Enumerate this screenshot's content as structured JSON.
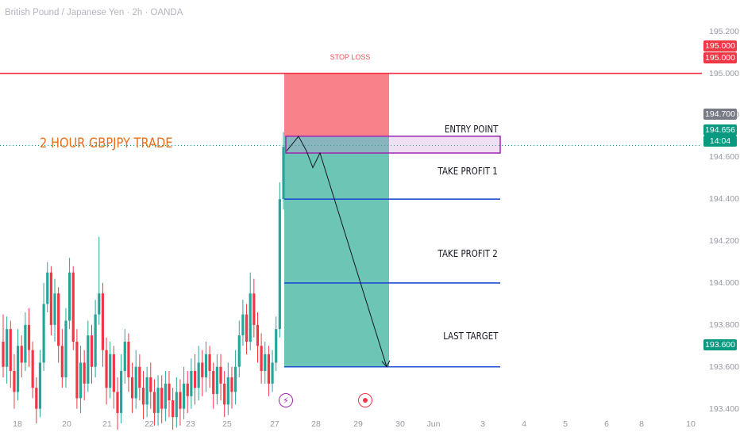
{
  "symbol_title": "British Pound / Japanese Yen · 2h · OANDA",
  "headline": "2 HOUR GBPJPY TRADE",
  "labels": {
    "stop_loss": "STOP LOSS",
    "entry": "ENTRY POINT",
    "tp1": "TAKE PROFIT 1",
    "tp2": "TAKE PROFIT 2",
    "last": "LAST TARGET"
  },
  "price_tags": {
    "stop_top": "195.000",
    "stop_bottom": "195.000",
    "entry_high": "194.700",
    "current": "194.656",
    "countdown": "14:04",
    "target": "193.600"
  },
  "colors": {
    "up": "#26a69a",
    "down": "#f23645",
    "stop_zone": "#f7828a",
    "profit_zone": "#6cc5b5",
    "stop_line": "#f23645",
    "target_line": "#1f4fd1",
    "entry_box": "#9c27b0"
  },
  "icons": {
    "event_1": "lightning-icon",
    "event_2": "dot-circle-icon"
  },
  "chart_data": {
    "type": "candlestick",
    "title": "British Pound / Japanese Yen · 2h · OANDA",
    "y_ticks": [
      "195.200",
      "195.000",
      "194.800",
      "194.600",
      "194.400",
      "194.200",
      "194.000",
      "193.800",
      "193.600",
      "193.400"
    ],
    "x_ticks": [
      "18",
      "20",
      "21",
      "22",
      "23",
      "25",
      "27",
      "28",
      "29",
      "30",
      "Jun",
      "3",
      "4",
      "5",
      "6",
      "8",
      "10"
    ],
    "ylim": [
      193.27,
      195.35
    ],
    "levels": {
      "stop_loss": 195.0,
      "entry_top": 194.7,
      "entry_bottom": 194.62,
      "take_profit_1": 194.4,
      "take_profit_2": 194.0,
      "last_target": 193.6,
      "current_price": 194.656
    },
    "projected_path": [
      194.63,
      194.7,
      194.63,
      194.55,
      194.62,
      193.6
    ],
    "candles": [
      [
        193.72,
        193.6,
        193.85,
        193.55
      ],
      [
        193.6,
        193.78,
        193.84,
        193.52
      ],
      [
        193.78,
        193.58,
        193.82,
        193.5
      ],
      [
        193.58,
        193.48,
        193.66,
        193.4
      ],
      [
        193.48,
        193.7,
        193.78,
        193.44
      ],
      [
        193.7,
        193.62,
        193.75,
        193.55
      ],
      [
        193.62,
        193.8,
        193.86,
        193.58
      ],
      [
        193.8,
        193.68,
        193.88,
        193.6
      ],
      [
        193.68,
        193.5,
        193.72,
        193.45
      ],
      [
        193.5,
        193.4,
        193.55,
        193.33
      ],
      [
        193.4,
        193.62,
        193.68,
        193.36
      ],
      [
        193.62,
        193.9,
        194.0,
        193.58
      ],
      [
        193.9,
        194.05,
        194.1,
        193.86
      ],
      [
        194.05,
        193.8,
        194.08,
        193.75
      ],
      [
        193.8,
        193.95,
        194.02,
        193.72
      ],
      [
        193.95,
        193.7,
        193.98,
        193.62
      ],
      [
        193.7,
        193.55,
        193.78,
        193.5
      ],
      [
        193.55,
        193.82,
        193.88,
        193.5
      ],
      [
        193.82,
        194.05,
        194.12,
        193.78
      ],
      [
        194.05,
        193.72,
        194.08,
        193.68
      ],
      [
        193.72,
        193.45,
        193.78,
        193.4
      ],
      [
        193.45,
        193.62,
        193.7,
        193.38
      ],
      [
        193.62,
        193.52,
        193.68,
        193.44
      ],
      [
        193.52,
        193.75,
        193.82,
        193.48
      ],
      [
        193.75,
        193.6,
        193.8,
        193.52
      ],
      [
        193.6,
        193.85,
        193.92,
        193.55
      ],
      [
        193.85,
        193.95,
        194.22,
        193.8
      ],
      [
        193.95,
        193.68,
        194.0,
        193.6
      ],
      [
        193.68,
        193.5,
        193.74,
        193.42
      ],
      [
        193.5,
        193.66,
        193.72,
        193.45
      ],
      [
        193.66,
        193.48,
        193.7,
        193.4
      ],
      [
        193.48,
        193.38,
        193.55,
        193.3
      ],
      [
        193.38,
        193.58,
        193.66,
        193.33
      ],
      [
        193.58,
        193.72,
        193.78,
        193.52
      ],
      [
        193.72,
        193.55,
        193.76,
        193.48
      ],
      [
        193.55,
        193.45,
        193.62,
        193.38
      ],
      [
        193.45,
        193.6,
        193.68,
        193.4
      ],
      [
        193.6,
        193.5,
        193.66,
        193.44
      ],
      [
        193.5,
        193.42,
        193.58,
        193.35
      ],
      [
        193.42,
        193.55,
        193.6,
        193.36
      ],
      [
        193.55,
        193.48,
        193.62,
        193.4
      ],
      [
        193.48,
        193.38,
        193.54,
        193.32
      ],
      [
        193.38,
        193.5,
        193.56,
        193.32
      ],
      [
        193.5,
        193.4,
        193.56,
        193.33
      ],
      [
        193.4,
        193.52,
        193.58,
        193.34
      ],
      [
        193.52,
        193.44,
        193.58,
        193.36
      ],
      [
        193.44,
        193.36,
        193.5,
        193.3
      ],
      [
        193.36,
        193.48,
        193.55,
        193.31
      ],
      [
        193.48,
        193.4,
        193.54,
        193.32
      ],
      [
        193.4,
        193.52,
        193.6,
        193.35
      ],
      [
        193.52,
        193.46,
        193.58,
        193.38
      ],
      [
        193.46,
        193.58,
        193.64,
        193.4
      ],
      [
        193.58,
        193.5,
        193.66,
        193.42
      ],
      [
        193.5,
        193.62,
        193.7,
        193.44
      ],
      [
        193.62,
        193.55,
        193.68,
        193.46
      ],
      [
        193.55,
        193.66,
        193.72,
        193.48
      ],
      [
        193.66,
        193.58,
        193.7,
        193.5
      ],
      [
        193.58,
        193.47,
        193.62,
        193.4
      ],
      [
        193.47,
        193.6,
        193.66,
        193.42
      ],
      [
        193.6,
        193.52,
        193.66,
        193.44
      ],
      [
        193.52,
        193.42,
        193.58,
        193.36
      ],
      [
        193.42,
        193.55,
        193.62,
        193.37
      ],
      [
        193.55,
        193.48,
        193.6,
        193.4
      ],
      [
        193.48,
        193.6,
        193.68,
        193.42
      ],
      [
        193.6,
        193.75,
        193.82,
        193.55
      ],
      [
        193.75,
        193.85,
        193.92,
        193.7
      ],
      [
        193.85,
        193.72,
        193.9,
        193.66
      ],
      [
        193.72,
        193.95,
        194.05,
        193.68
      ],
      [
        193.95,
        193.8,
        194.02,
        193.74
      ],
      [
        193.8,
        193.7,
        193.86,
        193.62
      ],
      [
        193.7,
        193.58,
        193.76,
        193.52
      ],
      [
        193.58,
        193.66,
        193.72,
        193.52
      ],
      [
        193.66,
        193.52,
        193.7,
        193.46
      ],
      [
        193.52,
        193.62,
        193.68,
        193.48
      ],
      [
        193.62,
        193.78,
        193.84,
        193.58
      ],
      [
        193.78,
        194.4,
        194.48,
        193.74
      ],
      [
        194.4,
        194.65,
        194.72,
        194.35
      ]
    ]
  }
}
